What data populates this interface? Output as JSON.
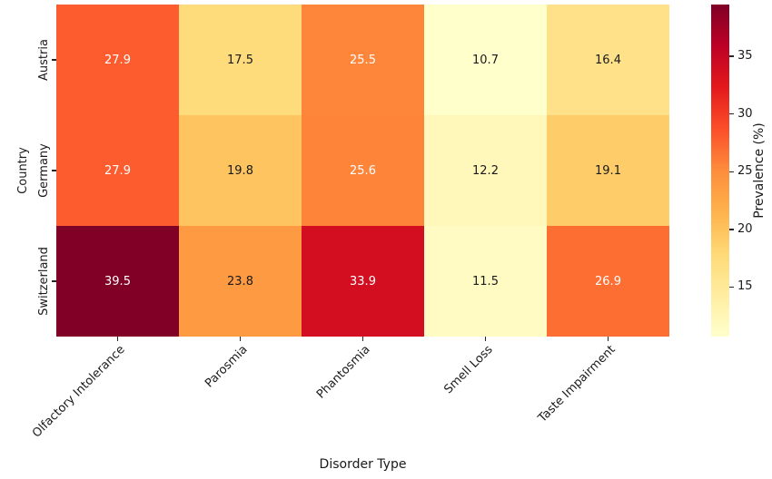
{
  "chart_data": {
    "type": "heatmap",
    "title": "",
    "xlabel": "Disorder Type",
    "ylabel": "Country",
    "x_categories": [
      "Olfactory Intolerance",
      "Parosmia",
      "Phantosmia",
      "Smell Loss",
      "Taste Impairment"
    ],
    "y_categories": [
      "Austria",
      "Germany",
      "Switzerland"
    ],
    "values": [
      [
        27.9,
        17.5,
        25.5,
        10.7,
        16.4
      ],
      [
        27.9,
        19.8,
        25.6,
        12.2,
        19.1
      ],
      [
        39.5,
        23.8,
        33.9,
        11.5,
        26.9
      ]
    ],
    "vmin": 10.7,
    "vmax": 39.5,
    "colorbar_label": "Prevalence (%)",
    "colorbar_ticks": [
      15,
      20,
      25,
      30,
      35
    ],
    "colormap_name": "YlOrRd",
    "colormap_stops": [
      "#ffffcc",
      "#ffeda0",
      "#fed976",
      "#feb24c",
      "#fd8d3c",
      "#fc4e2a",
      "#e31a1c",
      "#bd0026",
      "#800026"
    ],
    "annotation_text_light": "#ffffff",
    "annotation_text_dark": "#1a1a1a",
    "tick_color": "#262626",
    "legend_position": "right-colorbar",
    "grid": false
  }
}
